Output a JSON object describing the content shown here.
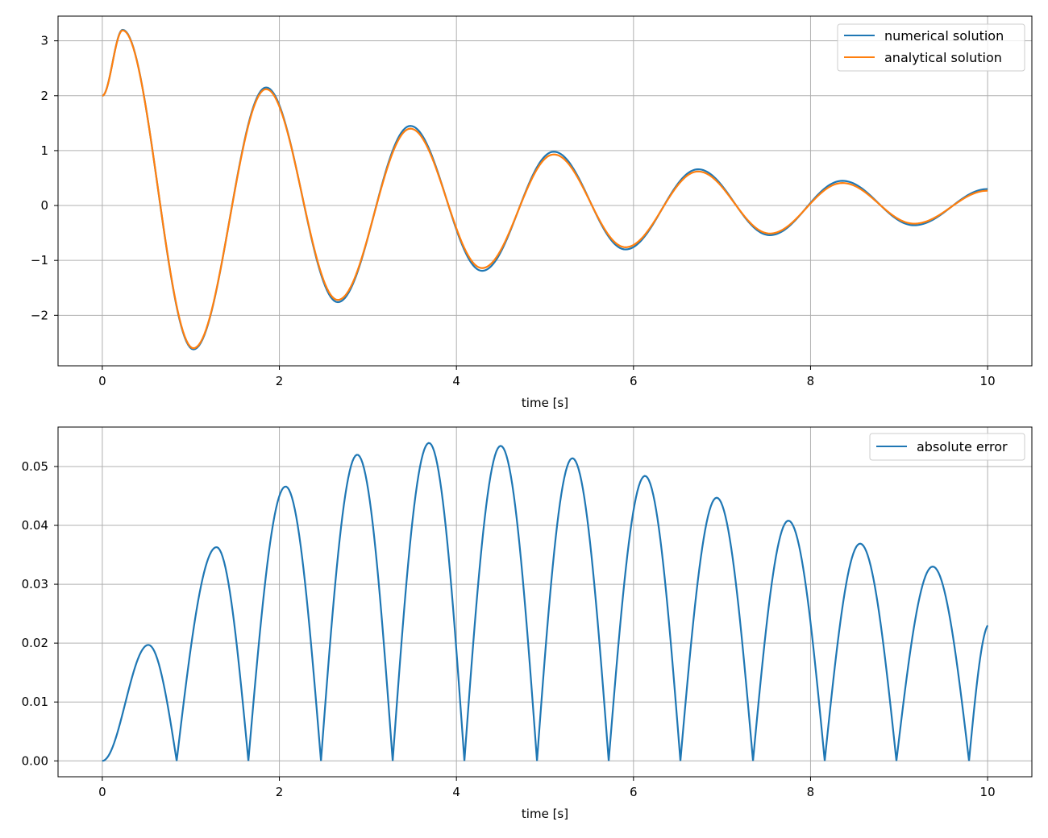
{
  "chart_data": [
    {
      "type": "line",
      "xlabel": "time [s]",
      "ylabel": "",
      "xlim": [
        -0.5,
        10.5
      ],
      "ylim": [
        -2.92,
        3.45
      ],
      "x_ticks": [
        0,
        2,
        4,
        6,
        8,
        10
      ],
      "x_tick_labels": [
        "0",
        "2",
        "4",
        "6",
        "8",
        "10"
      ],
      "y_ticks": [
        -2,
        -1,
        0,
        1,
        2,
        3
      ],
      "y_tick_labels": [
        "−2",
        "−1",
        "0",
        "1",
        "2",
        "3"
      ],
      "grid": true,
      "legend_position": "top-right",
      "x": [
        0,
        0.23,
        1.03,
        1.85,
        2.66,
        3.48,
        4.29,
        5.1,
        5.91,
        6.73,
        7.54,
        8.36,
        9.17,
        10.0
      ],
      "series": [
        {
          "name": "numerical solution",
          "color": "#1f77b4",
          "values": [
            2.0,
            3.2,
            -2.62,
            2.15,
            -1.76,
            1.45,
            -1.19,
            0.98,
            -0.8,
            0.66,
            -0.54,
            0.45,
            -0.36,
            0.3
          ]
        },
        {
          "name": "analytical solution",
          "color": "#ff7f0e",
          "values": [
            2.0,
            3.19,
            -2.6,
            2.12,
            -1.72,
            1.4,
            -1.14,
            0.93,
            -0.76,
            0.62,
            -0.51,
            0.41,
            -0.33,
            0.27
          ]
        }
      ]
    },
    {
      "type": "line",
      "xlabel": "time [s]",
      "ylabel": "",
      "xlim": [
        -0.5,
        10.5
      ],
      "ylim": [
        -0.0027,
        0.0567
      ],
      "x_ticks": [
        0,
        2,
        4,
        6,
        8,
        10
      ],
      "x_tick_labels": [
        "0",
        "2",
        "4",
        "6",
        "8",
        "10"
      ],
      "y_ticks": [
        0.0,
        0.01,
        0.02,
        0.03,
        0.04,
        0.05
      ],
      "y_tick_labels": [
        "0.00",
        "0.01",
        "0.02",
        "0.03",
        "0.04",
        "0.05"
      ],
      "grid": true,
      "legend_position": "top-right",
      "zeros": [
        0.0,
        0.84,
        1.65,
        2.47,
        3.28,
        4.09,
        4.91,
        5.72,
        6.53,
        7.35,
        8.16,
        8.97,
        9.79
      ],
      "peaks": [
        {
          "x": 0.52,
          "y": 0.0197
        },
        {
          "x": 1.29,
          "y": 0.0363
        },
        {
          "x": 2.07,
          "y": 0.0466
        },
        {
          "x": 2.88,
          "y": 0.052
        },
        {
          "x": 3.69,
          "y": 0.054
        },
        {
          "x": 4.5,
          "y": 0.0535
        },
        {
          "x": 5.31,
          "y": 0.0514
        },
        {
          "x": 6.13,
          "y": 0.0484
        },
        {
          "x": 6.94,
          "y": 0.0447
        },
        {
          "x": 7.75,
          "y": 0.0408
        },
        {
          "x": 8.56,
          "y": 0.0369
        },
        {
          "x": 9.38,
          "y": 0.033
        }
      ],
      "end": {
        "x": 10.0,
        "y": 0.023
      },
      "series": [
        {
          "name": "absolute error",
          "color": "#1f77b4"
        }
      ]
    }
  ]
}
